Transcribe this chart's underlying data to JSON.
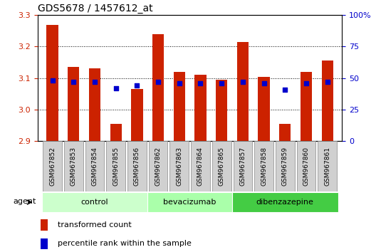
{
  "title": "GDS5678 / 1457612_at",
  "samples": [
    "GSM967852",
    "GSM967853",
    "GSM967854",
    "GSM967855",
    "GSM967856",
    "GSM967862",
    "GSM967863",
    "GSM967864",
    "GSM967865",
    "GSM967857",
    "GSM967858",
    "GSM967859",
    "GSM967860",
    "GSM967861"
  ],
  "bar_values": [
    3.27,
    3.135,
    3.13,
    2.955,
    3.065,
    3.24,
    3.12,
    3.11,
    3.095,
    3.215,
    3.105,
    2.955,
    3.12,
    3.155
  ],
  "percentile_values": [
    48,
    47,
    47,
    42,
    44,
    47,
    46,
    46,
    46,
    47,
    46,
    41,
    46,
    47
  ],
  "bar_color": "#cc2200",
  "dot_color": "#0000cc",
  "ylim": [
    2.9,
    3.3
  ],
  "y2lim": [
    0,
    100
  ],
  "yticks": [
    2.9,
    3.0,
    3.1,
    3.2,
    3.3
  ],
  "y2ticks": [
    0,
    25,
    50,
    75,
    100
  ],
  "groups": [
    {
      "label": "control",
      "start": 0,
      "end": 5
    },
    {
      "label": "bevacizumab",
      "start": 5,
      "end": 9
    },
    {
      "label": "dibenzazepine",
      "start": 9,
      "end": 14
    }
  ],
  "group_colors": [
    "#ccffcc",
    "#aaffaa",
    "#44cc44"
  ],
  "agent_label": "agent",
  "legend_bar_label": "transformed count",
  "legend_dot_label": "percentile rank within the sample",
  "background_color": "#ffffff",
  "tick_label_color_left": "#cc2200",
  "tick_label_color_right": "#0000cc",
  "grid_color": "#000000",
  "bar_bottom": 2.9,
  "gray_box_color": "#d0d0d0",
  "gray_box_edge": "#888888"
}
